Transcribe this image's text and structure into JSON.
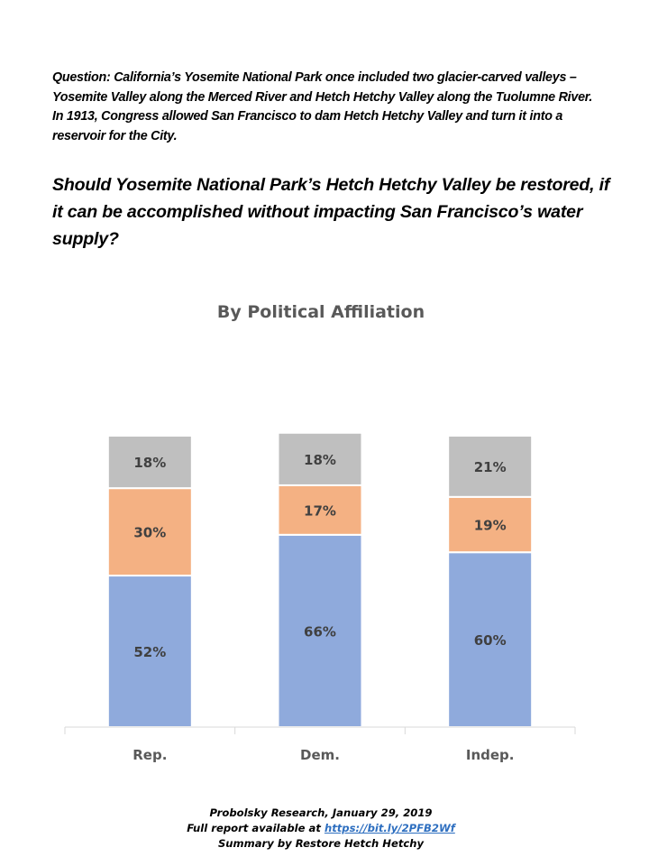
{
  "intro_text": "Question: California’s Yosemite National Park once included two glacier-carved valleys – Yosemite Valley along the Merced River and Hetch Hetchy Valley along the Tuolumne River. In 1913, Congress allowed San Francisco to dam Hetch Hetchy Valley and turn it into a reservoir for the City.",
  "question_text": "Should Yosemite National Park’s Hetch Hetchy Valley be restored, if it can be accomplished without impacting San Francisco’s water supply?",
  "chart_data": {
    "type": "bar",
    "stacked": true,
    "title": "By Political Affiliation",
    "xlabel": "",
    "ylabel": "",
    "ylim": [
      0,
      100
    ],
    "grid": false,
    "legend": "none",
    "categories": [
      "Rep.",
      "Dem.",
      "Indep."
    ],
    "series": [
      {
        "name": "Segment 1 (bottom)",
        "color": "#8faadc",
        "values": [
          52,
          66,
          60
        ],
        "labels": [
          "52%",
          "66%",
          "60%"
        ]
      },
      {
        "name": "Segment 2 (middle)",
        "color": "#f4b183",
        "values": [
          30,
          17,
          19
        ],
        "labels": [
          "30%",
          "17%",
          "19%"
        ]
      },
      {
        "name": "Segment 3 (top)",
        "color": "#bfbfbf",
        "values": [
          18,
          18,
          21
        ],
        "labels": [
          "18%",
          "18%",
          "21%"
        ]
      }
    ]
  },
  "footer": {
    "line1": "Probolsky Research, January 29, 2019",
    "line2_prefix": "Full report available at ",
    "link_text": "https://bit.ly/2PFB2Wf",
    "line3": "Summary by Restore Hetch Hetchy"
  }
}
